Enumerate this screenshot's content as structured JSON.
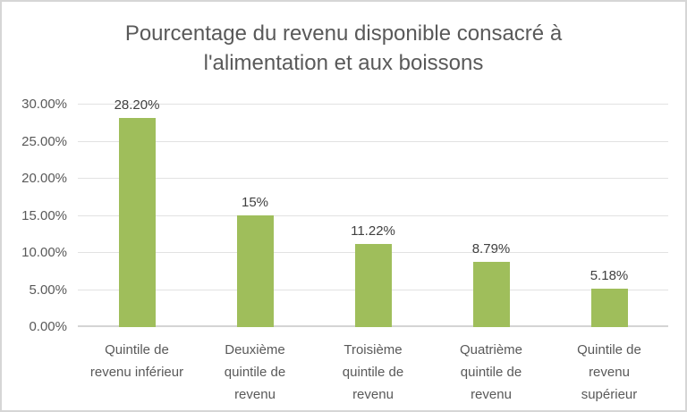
{
  "chart_data": {
    "type": "bar",
    "title": "Pourcentage du revenu disponible consacré à\nl'alimentation et aux boissons",
    "categories": [
      "Quintile de\nrevenu inférieur",
      "Deuxième\nquintile de\nrevenu",
      "Troisième\nquintile de\nrevenu",
      "Quatrième\nquintile de\nrevenu",
      "Quintile de\nrevenu\nsupérieur"
    ],
    "values": [
      28.2,
      15,
      11.22,
      8.79,
      5.18
    ],
    "data_labels": [
      "28.20%",
      "15%",
      "11.22%",
      "8.79%",
      "5.18%"
    ],
    "y_ticks": [
      "0.00%",
      "5.00%",
      "10.00%",
      "15.00%",
      "20.00%",
      "25.00%",
      "30.00%"
    ],
    "ylim": [
      0,
      30
    ],
    "xlabel": "",
    "ylabel": "",
    "grid": true,
    "legend": "none",
    "bar_color": "#9fbe5b",
    "gridline_color": "#e2e2e2",
    "axis_line_color": "#d4d4d4",
    "title_color": "#595959",
    "axis_text_color": "#595959",
    "data_label_color": "#404040",
    "frame_border_color": "#d6d6d6"
  }
}
